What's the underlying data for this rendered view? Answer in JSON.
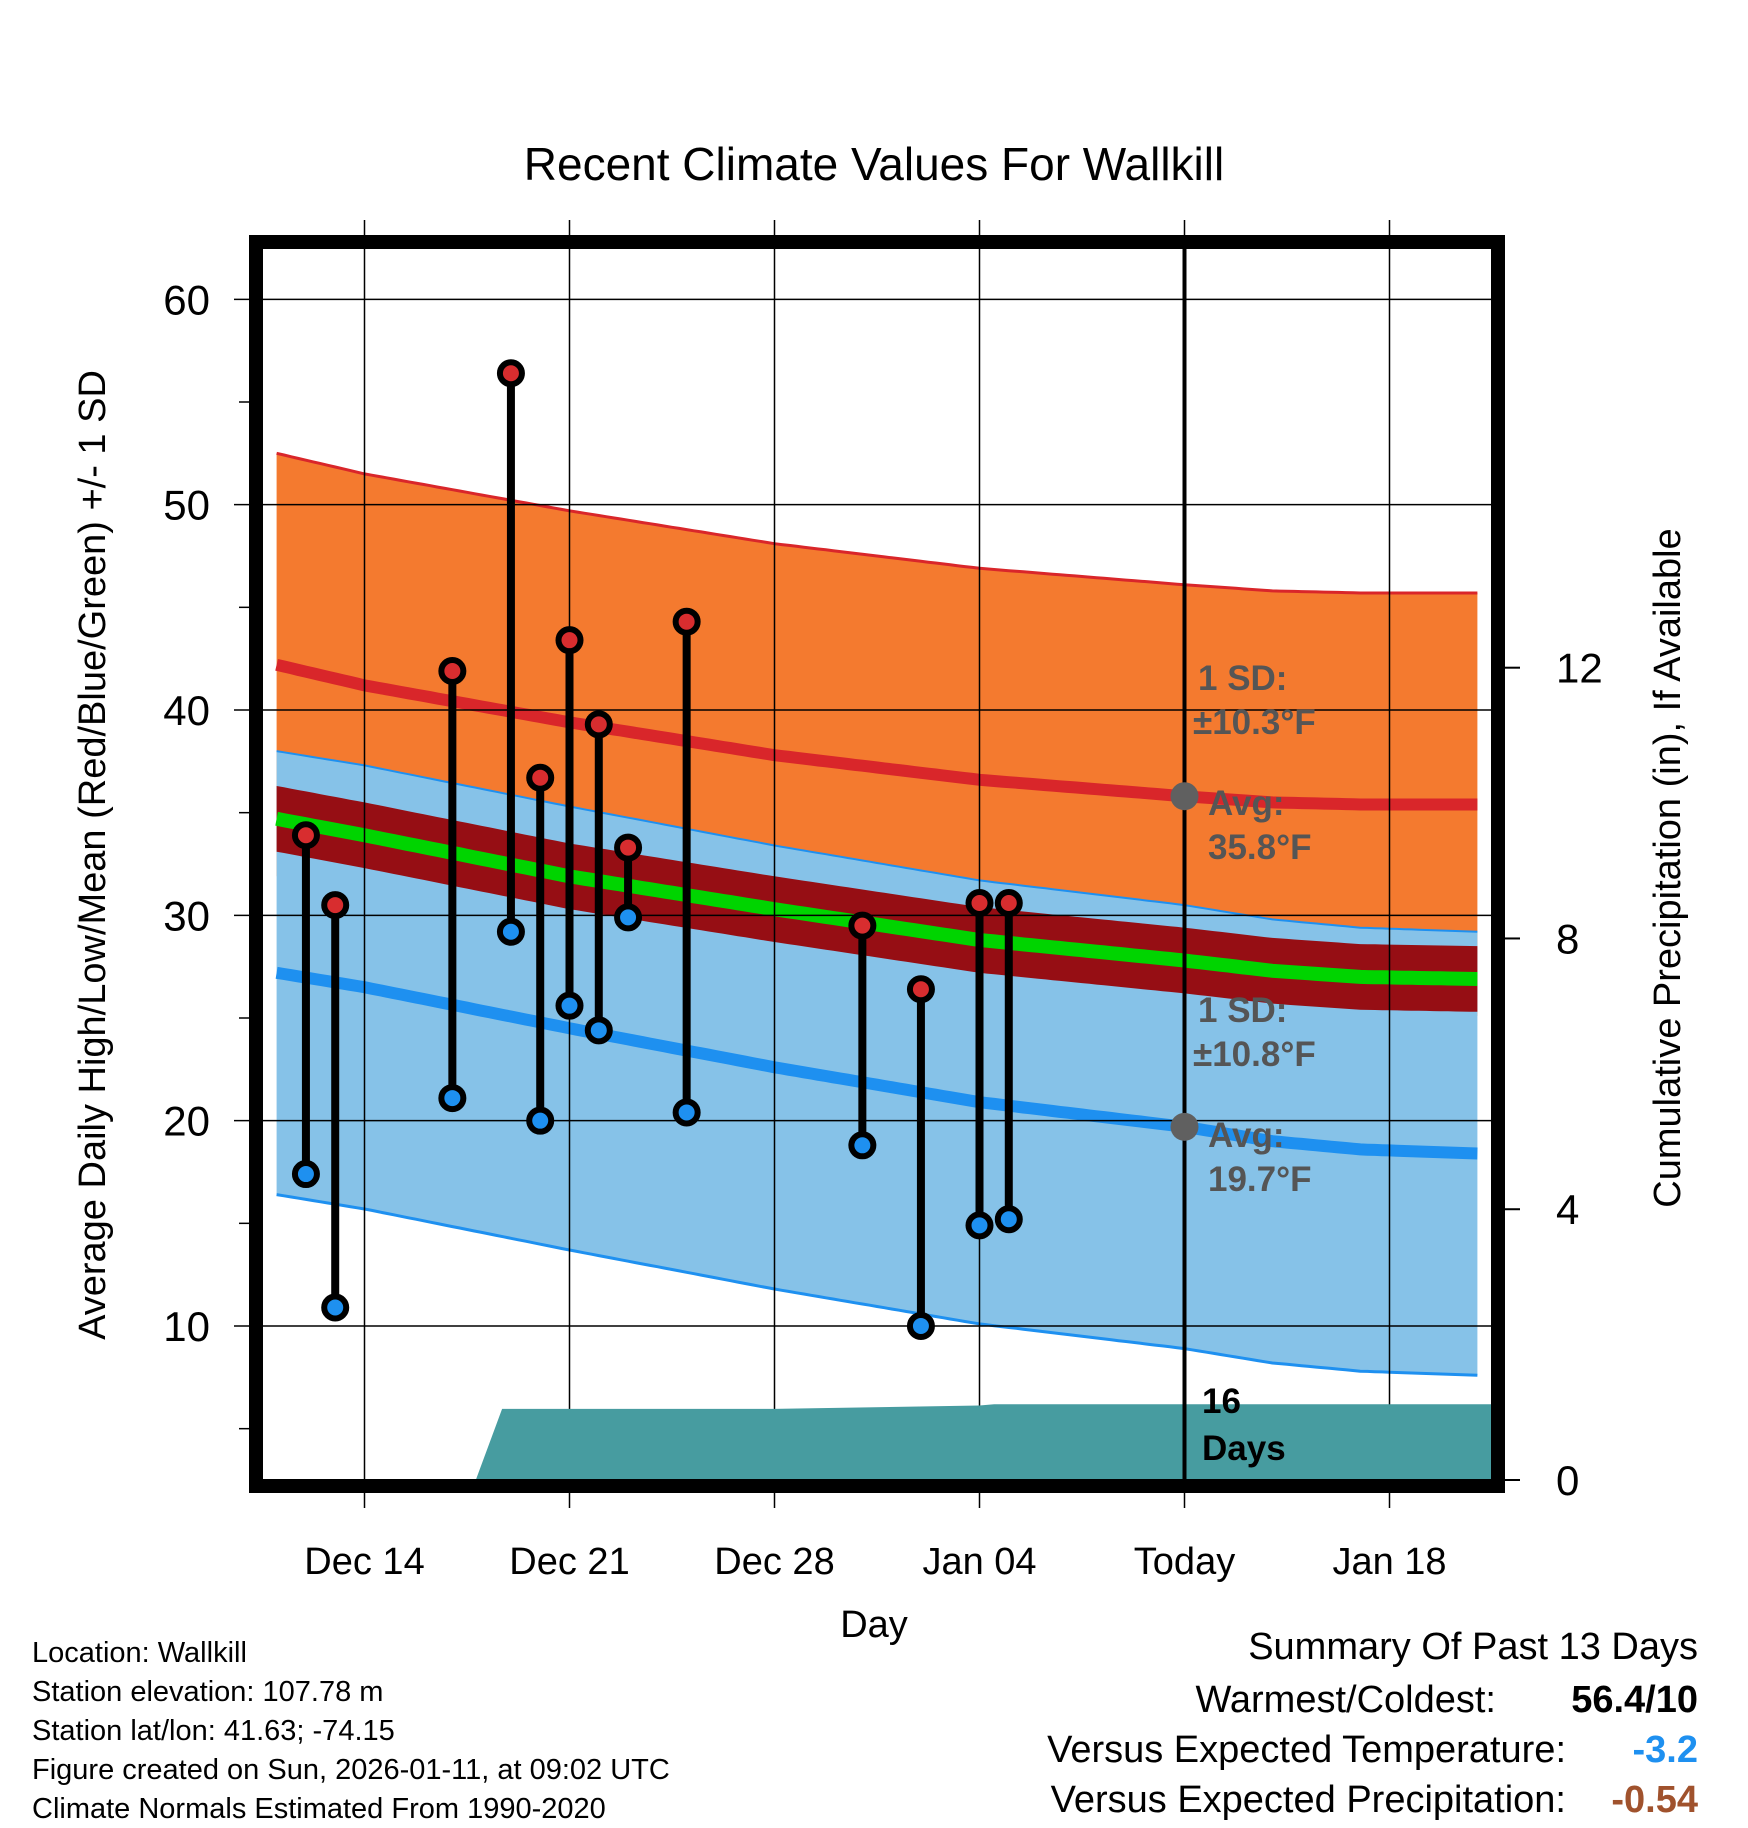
{
  "chart_data": {
    "type": "range-bar",
    "title": "Recent Climate Values For Wallkill",
    "xlabel": "Day",
    "ylabel_left": "Average Daily High/Low/Mean (Red/Blue/Green) +/- 1 SD",
    "ylabel_right": "Cumulative Precipitation (in), If Available",
    "x_range_days": [
      -31.5,
      10.5
    ],
    "x_ticks": [
      {
        "day": -28,
        "label": "Dec 14"
      },
      {
        "day": -21,
        "label": "Dec 21"
      },
      {
        "day": -14,
        "label": "Dec 28"
      },
      {
        "day": -7,
        "label": "Jan 04"
      },
      {
        "day": 0,
        "label": "Today"
      },
      {
        "day": 7,
        "label": "Jan 18"
      }
    ],
    "y_left_range": [
      2.5,
      62.5
    ],
    "y_left_ticks": [
      10,
      20,
      30,
      40,
      50,
      60
    ],
    "y_right_range": [
      0,
      18.2
    ],
    "y_right_ticks": [
      0,
      4,
      8,
      12
    ],
    "colors": {
      "high_band": "#f47a2f",
      "high_avg": "#d9262a",
      "mean_band": "#960e14",
      "mean_avg": "#00d400",
      "low_band": "#86c2e8",
      "low_avg": "#1e90f0",
      "precip": "#479ca0",
      "observed_high": "#d82d2f",
      "observed_low": "#1e90f0",
      "marker": "#606060",
      "annotation": "#555555",
      "temp_anomaly": "#1e90f0",
      "precip_anomaly": "#a0522d"
    },
    "normals": {
      "days": [
        -31,
        -28,
        -21,
        -14,
        -7,
        0,
        3,
        6,
        10
      ],
      "high_avg": [
        42.2,
        41.2,
        39.4,
        37.8,
        36.6,
        35.8,
        35.5,
        35.4,
        35.4
      ],
      "high_sd": 10.3,
      "low_avg": [
        27.2,
        26.5,
        24.5,
        22.6,
        20.9,
        19.7,
        19.0,
        18.6,
        18.4
      ],
      "low_sd": 10.8,
      "mean_avg": [
        34.7,
        33.9,
        31.9,
        30.3,
        28.8,
        27.8,
        27.3,
        27.0,
        26.9
      ],
      "mean_sd": 1.6
    },
    "observed": [
      {
        "day": -30,
        "high": 33.9,
        "low": 17.4
      },
      {
        "day": -29,
        "high": 30.5,
        "low": 10.9
      },
      {
        "day": -25,
        "high": 41.9,
        "low": 21.1
      },
      {
        "day": -23,
        "high": 56.4,
        "low": 29.2
      },
      {
        "day": -22,
        "high": 36.7,
        "low": 20.0
      },
      {
        "day": -21,
        "high": 43.4,
        "low": 25.6
      },
      {
        "day": -20,
        "high": 39.3,
        "low": 24.4
      },
      {
        "day": -19,
        "high": 33.3,
        "low": 29.9
      },
      {
        "day": -17,
        "high": 44.3,
        "low": 20.4
      },
      {
        "day": -11,
        "high": 29.5,
        "low": 18.8
      },
      {
        "day": -9,
        "high": 26.4,
        "low": 10.0
      },
      {
        "day": -7,
        "high": 30.6,
        "low": 14.9
      },
      {
        "day": -6,
        "high": 30.6,
        "low": 15.2
      }
    ],
    "precipitation": {
      "days": [
        -24.2,
        -23.3,
        -14,
        -7,
        -6.5,
        10.5
      ],
      "cumulative": [
        0,
        1.05,
        1.05,
        1.1,
        1.12,
        1.12
      ]
    },
    "annotations": {
      "high_sd_line1": "1 SD:",
      "high_sd_line2": "±10.3°F",
      "high_avg_line1": "Avg:",
      "high_avg_line2": "35.8°F",
      "low_sd_line1": "1 SD:",
      "low_sd_line2": "±10.8°F",
      "low_avg_line1": "Avg:",
      "low_avg_line2": "19.7°F",
      "days_count": "16",
      "days_word": "Days"
    }
  },
  "info": {
    "location": "Location: Wallkill",
    "elevation": "Station elevation: 107.78 m",
    "latlon": "Station lat/lon: 41.63; -74.15",
    "created": "Figure created on Sun, 2026-01-11, at 09:02 UTC",
    "normals": "Climate Normals Estimated From 1990-2020"
  },
  "summary": {
    "title": "Summary Of Past 13 Days",
    "warm_cold_label": "Warmest/Coldest:",
    "warm_cold_value": "56.4/10",
    "temp_label": "Versus Expected Temperature:",
    "temp_value": "-3.2",
    "precip_label": "Versus Expected Precipitation:",
    "precip_value": "-0.54"
  }
}
